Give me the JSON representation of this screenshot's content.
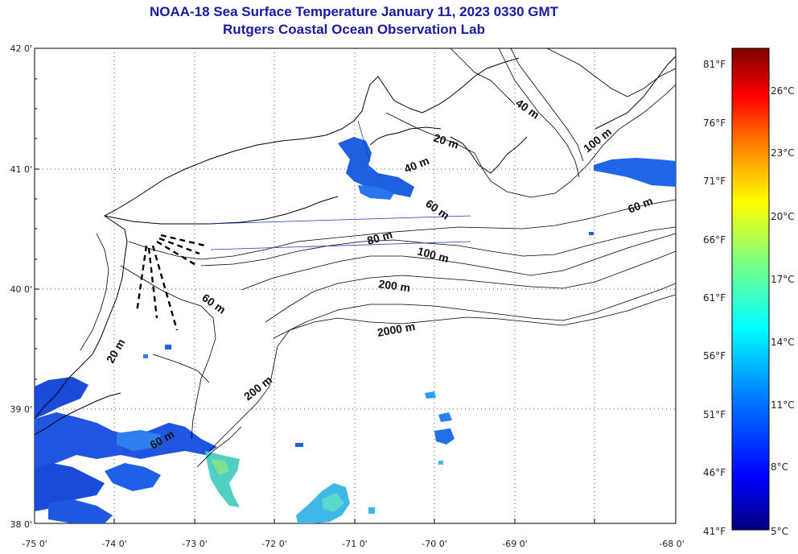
{
  "title": {
    "line1": "NOAA-18 Sea Surface Temperature January 11, 2023 0330 GMT",
    "line2": "Rutgers Coastal Ocean Observation Lab"
  },
  "axes": {
    "lat_labels": [
      "42 0'",
      "41 0'",
      "40 0'",
      "39 0'",
      "38 0'"
    ],
    "lon_labels": [
      "-75 0'",
      "-74 0'",
      "-73 0'",
      "-72 0'",
      "-71 0'",
      "-70 0'",
      "-69 0'",
      "-68 0'"
    ]
  },
  "contour_labels": {
    "c20_north": "20 m",
    "c40_north": "40 m",
    "c40_gulf": "40 m",
    "c60_north": "60 m",
    "c100_east": "100 m",
    "c60_east": "60 m",
    "c80": "80 m",
    "c100": "100 m",
    "c200": "200 m",
    "c2000": "2000 m",
    "c60_nj": "60 m",
    "c20_nj": "20 m",
    "c200_south": "200 m",
    "c60_south": "60 m"
  },
  "colorbar": {
    "f_labels": [
      "81°F",
      "76°F",
      "71°F",
      "66°F",
      "61°F",
      "56°F",
      "51°F",
      "46°F",
      "41°F"
    ],
    "c_labels": [
      "26°C",
      "23°C",
      "20°C",
      "17°C",
      "14°C",
      "11°C",
      "8°C",
      "5°C"
    ],
    "colors": [
      "#7f0000",
      "#ff0000",
      "#ff8000",
      "#ffff00",
      "#80ff80",
      "#00ffff",
      "#0080ff",
      "#0000ff",
      "#00008f"
    ]
  }
}
